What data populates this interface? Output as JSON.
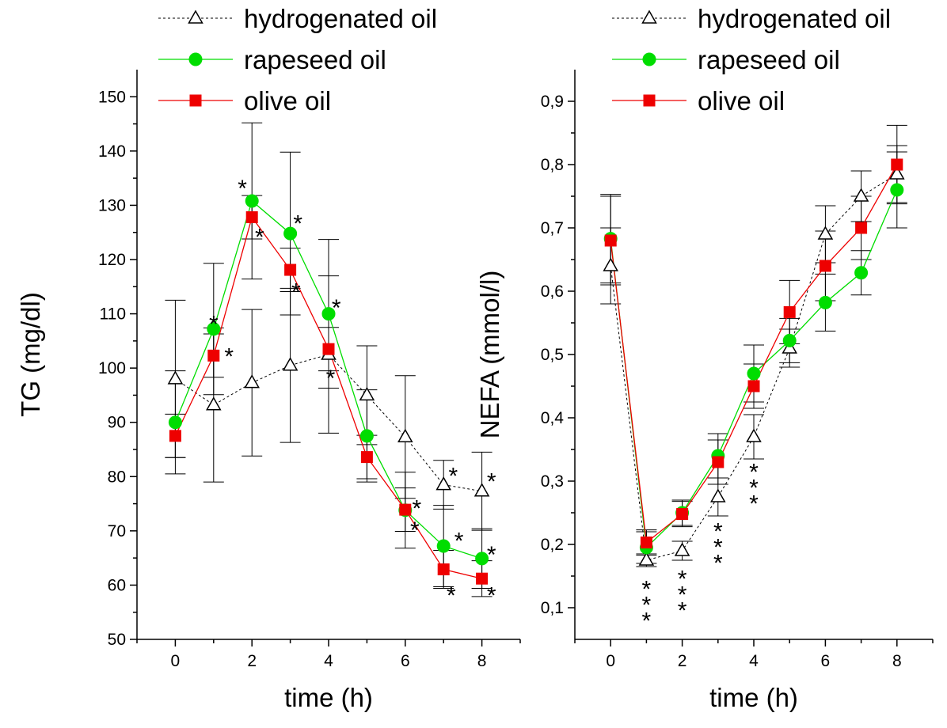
{
  "chart_data": [
    {
      "type": "line",
      "xlabel": "time (h)",
      "ylabel": "TG (mg/dl)",
      "xlim": [
        -1,
        9
      ],
      "ylim": [
        50,
        155
      ],
      "xticks": [
        0,
        2,
        4,
        6,
        8
      ],
      "yticks": [
        50,
        60,
        70,
        80,
        90,
        100,
        110,
        120,
        130,
        140,
        150
      ],
      "ytick_labels": [
        "50",
        "60",
        "70",
        "80",
        "90",
        "100",
        "110",
        "120",
        "130",
        "140",
        "150"
      ],
      "legend_placement": "top-left",
      "series": [
        {
          "name": "hydrogenated oil",
          "color": "#000000",
          "marker": "triangle-open",
          "dashed": true,
          "x": [
            0,
            1,
            2,
            3,
            4,
            5,
            6,
            7,
            8
          ],
          "y": [
            98,
            93.2,
            97.3,
            100.5,
            102.5,
            95,
            87.3,
            78.5,
            77.3
          ],
          "err": [
            14.5,
            14.2,
            13.5,
            14.2,
            14.5,
            9.1,
            11.3,
            4.5,
            7.2
          ]
        },
        {
          "name": "rapeseed oil",
          "color": "#00dd00",
          "marker": "circle",
          "dashed": false,
          "x": [
            0,
            1,
            2,
            3,
            4,
            5,
            6,
            7,
            8
          ],
          "y": [
            90,
            107.2,
            130.8,
            124.8,
            110,
            87.5,
            73.8,
            67.2,
            64.9
          ],
          "err": [
            9.5,
            12.1,
            14.4,
            15.0,
            13.7,
            8.5,
            7.0,
            7.5,
            5.5
          ],
          "stars": [
            "",
            "*",
            "*",
            "*",
            "*",
            "",
            "",
            "*",
            "*"
          ]
        },
        {
          "name": "olive oil",
          "color": "#ee0000",
          "marker": "square",
          "dashed": false,
          "x": [
            0,
            1,
            2,
            3,
            4,
            5,
            6,
            7,
            8
          ],
          "y": [
            87.5,
            102.3,
            127.8,
            118.1,
            103.5,
            83.6,
            73.9,
            62.9,
            61.2
          ],
          "err": [
            4,
            4,
            4,
            4,
            4,
            4,
            4,
            3.5,
            3.3
          ],
          "stars": [
            "",
            "*",
            "*",
            "*",
            "*",
            "",
            "*",
            "*",
            "*"
          ]
        }
      ],
      "annotations": [
        {
          "text": "*",
          "x": 1.0,
          "y": 109
        },
        {
          "text": "*",
          "x": 1.4,
          "y": 103
        },
        {
          "text": "*",
          "x": 1.75,
          "y": 134
        },
        {
          "text": "*",
          "x": 2.2,
          "y": 125
        },
        {
          "text": "*",
          "x": 3.2,
          "y": 127.5
        },
        {
          "text": "*",
          "x": 3.15,
          "y": 115
        },
        {
          "text": "*",
          "x": 4.2,
          "y": 112
        },
        {
          "text": "*",
          "x": 4.05,
          "y": 99
        },
        {
          "text": "*",
          "x": 6.3,
          "y": 75
        },
        {
          "text": "*",
          "x": 6.25,
          "y": 71
        },
        {
          "text": "*",
          "x": 7.25,
          "y": 81
        },
        {
          "text": "*",
          "x": 7.4,
          "y": 69
        },
        {
          "text": "*",
          "x": 7.2,
          "y": 59
        },
        {
          "text": "*",
          "x": 8.25,
          "y": 80
        },
        {
          "text": "*",
          "x": 8.25,
          "y": 66.5
        },
        {
          "text": "*",
          "x": 8.25,
          "y": 59
        }
      ]
    },
    {
      "type": "line",
      "xlabel": "time (h)",
      "ylabel": "NEFA (mmol/l)",
      "xlim": [
        -1,
        9
      ],
      "ylim": [
        0.05,
        0.95
      ],
      "xticks": [
        0,
        2,
        4,
        6,
        8
      ],
      "yticks": [
        0.1,
        0.2,
        0.3,
        0.4,
        0.5,
        0.6,
        0.7,
        0.8,
        0.9
      ],
      "ytick_labels": [
        "0,1",
        "0,2",
        "0,3",
        "0,4",
        "0,5",
        "0,6",
        "0,7",
        "0,8",
        "0,9"
      ],
      "legend_placement": "top-left",
      "series": [
        {
          "name": "hydrogenated oil",
          "color": "#000000",
          "marker": "triangle-open",
          "dashed": true,
          "x": [
            0,
            1,
            2,
            3,
            4,
            5,
            6,
            7,
            8
          ],
          "y": [
            0.64,
            0.175,
            0.19,
            0.275,
            0.37,
            0.51,
            0.69,
            0.75,
            0.785
          ],
          "err": [
            0.06,
            0.01,
            0.015,
            0.03,
            0.035,
            0.03,
            0.045,
            0.04,
            0.045
          ]
        },
        {
          "name": "rapeseed oil",
          "color": "#00dd00",
          "marker": "circle",
          "dashed": false,
          "x": [
            0,
            1,
            2,
            3,
            4,
            5,
            6,
            7,
            8
          ],
          "y": [
            0.683,
            0.195,
            0.25,
            0.34,
            0.47,
            0.522,
            0.582,
            0.629,
            0.76
          ],
          "err": [
            0.07,
            0.025,
            0.02,
            0.035,
            0.045,
            0.035,
            0.045,
            0.035,
            0.06
          ]
        },
        {
          "name": "olive oil",
          "color": "#ee0000",
          "marker": "square",
          "dashed": false,
          "x": [
            0,
            1,
            2,
            3,
            4,
            5,
            6,
            7,
            8
          ],
          "y": [
            0.68,
            0.203,
            0.248,
            0.33,
            0.45,
            0.567,
            0.64,
            0.7,
            0.8
          ],
          "err": [
            0.07,
            0.02,
            0.02,
            0.035,
            0.035,
            0.05,
            0.055,
            0.05,
            0.062
          ]
        }
      ],
      "annotations": [
        {
          "text": "*",
          "x": 1.0,
          "y": 0.137
        },
        {
          "text": "*",
          "x": 1.0,
          "y": 0.112
        },
        {
          "text": "*",
          "x": 1.0,
          "y": 0.087
        },
        {
          "text": "*",
          "x": 2.0,
          "y": 0.153
        },
        {
          "text": "*",
          "x": 2.0,
          "y": 0.128
        },
        {
          "text": "*",
          "x": 2.0,
          "y": 0.103
        },
        {
          "text": "*",
          "x": 3.0,
          "y": 0.228
        },
        {
          "text": "*",
          "x": 3.0,
          "y": 0.203
        },
        {
          "text": "*",
          "x": 3.0,
          "y": 0.178
        },
        {
          "text": "*",
          "x": 4.0,
          "y": 0.322
        },
        {
          "text": "*",
          "x": 4.0,
          "y": 0.297
        },
        {
          "text": "*",
          "x": 4.0,
          "y": 0.272
        }
      ]
    }
  ]
}
